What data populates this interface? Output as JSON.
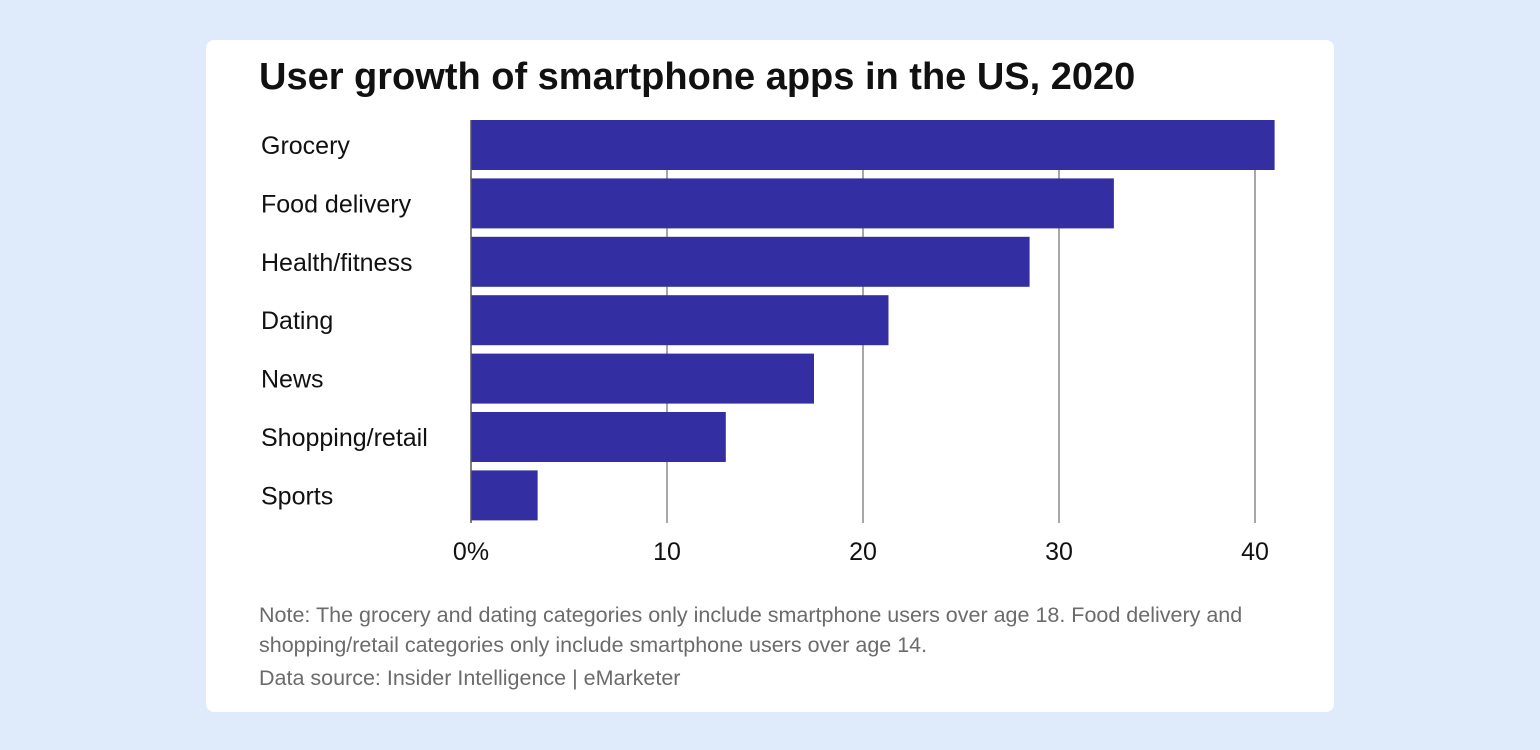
{
  "chart_data": {
    "type": "bar",
    "orientation": "horizontal",
    "title": "User growth of smartphone apps in the US, 2020",
    "categories": [
      "Grocery",
      "Food delivery",
      "Health/fitness",
      "Dating",
      "News",
      "Shopping/retail",
      "Sports"
    ],
    "values": [
      41,
      32.8,
      28.5,
      21.3,
      17.5,
      13,
      3.4
    ],
    "xlim": [
      0,
      41
    ],
    "xticks": [
      0,
      10,
      20,
      30,
      40
    ],
    "xtick_labels": [
      "0%",
      "10",
      "20",
      "30",
      "40"
    ],
    "xlabel": "",
    "ylabel": "",
    "grid": true,
    "bar_color": "#332fa3"
  },
  "note": "Note: The grocery and dating categories only include smartphone users over age 18. Food delivery and shopping/retail categories only include smartphone users over age 14.",
  "source": "Data source: Insider Intelligence | eMarketer"
}
